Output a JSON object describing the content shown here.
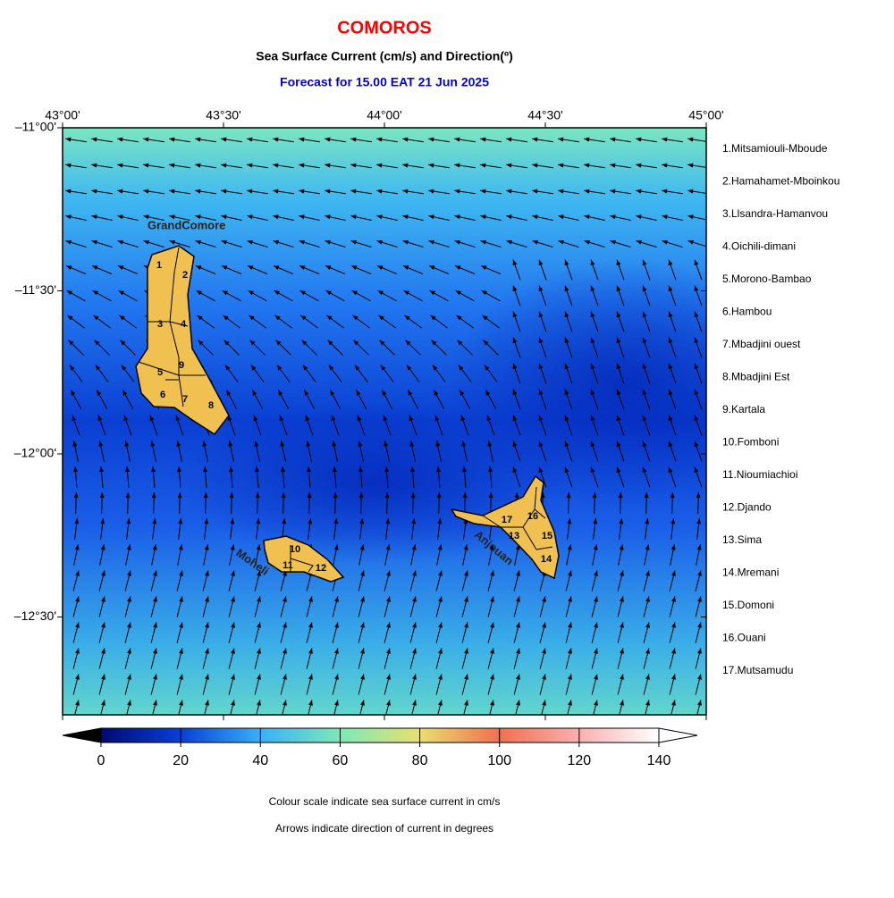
{
  "header": {
    "title": "COMOROS",
    "subtitle": "Sea Surface Current (cm/s) and Direction(º)",
    "forecast": "Forecast for  15.00 EAT 21 Jun 2025"
  },
  "map": {
    "xlim": [
      43,
      45
    ],
    "ylim": [
      -12.8,
      -11
    ],
    "xticks": [
      {
        "value": 43,
        "label": "43°00'"
      },
      {
        "value": 43.5,
        "label": "43°30'"
      },
      {
        "value": 44,
        "label": "44°00'"
      },
      {
        "value": 44.5,
        "label": "44°30'"
      },
      {
        "value": 45,
        "label": "45°00'"
      }
    ],
    "yticks": [
      {
        "value": -11,
        "label": "–11°00'"
      },
      {
        "value": -11.5,
        "label": "–11°30'"
      },
      {
        "value": -12,
        "label": "–12°00'"
      },
      {
        "value": -12.5,
        "label": "–12°30'"
      }
    ],
    "islands": [
      "GrandComore",
      "Moheli",
      "Anjouan"
    ],
    "district_numbers": [
      "1",
      "2",
      "3",
      "4",
      "5",
      "6",
      "7",
      "8",
      "9",
      "10",
      "11",
      "12",
      "13",
      "14",
      "15",
      "16",
      "17"
    ]
  },
  "districts": [
    "1.Mitsamiouli-Mboude",
    "2.Hamahamet-Mboinkou",
    "3.Llsandra-Hamanvou",
    "4.Oichili-dimani",
    "5.Morono-Bambao",
    "6.Hambou",
    "7.Mbadjini ouest",
    "8.Mbadjini Est",
    "9.Kartala",
    "10.Fomboni",
    "11.Nioumiachioi",
    "12.Djando",
    "13.Sima",
    "14.Mremani",
    "15.Domoni",
    "16.Ouani",
    "17.Mutsamudu"
  ],
  "colorbar": {
    "lim": [
      0,
      140
    ],
    "ticks": [
      0,
      20,
      40,
      60,
      80,
      100,
      120,
      140
    ]
  },
  "notes": [
    "Colour scale indicate sea surface current in cm/s",
    "Arrows indicate direction of current in degrees"
  ]
}
